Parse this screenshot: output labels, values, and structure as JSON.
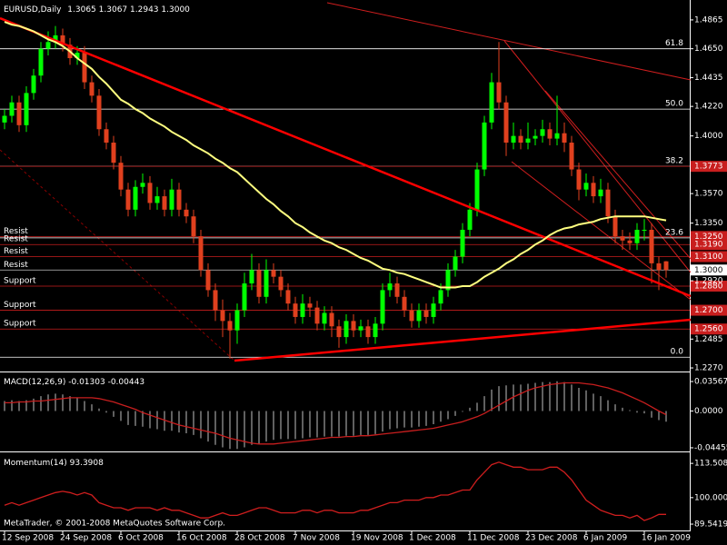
{
  "chart_data": [
    {
      "type": "candlestick",
      "title": "EURUSD,Daily",
      "close_label": "1.3000",
      "categories": [
        "12 Sep 2008",
        null,
        null,
        null,
        null,
        null,
        null,
        null,
        "24 Sep 2008",
        null,
        null,
        null,
        null,
        null,
        null,
        null,
        "6 Oct 2008",
        null,
        null,
        null,
        null,
        null,
        null,
        null,
        "16 Oct 2008",
        null,
        null,
        null,
        null,
        null,
        null,
        null,
        "28 Oct 2008",
        null,
        null,
        null,
        null,
        null,
        null,
        null,
        "7 Nov 2008",
        null,
        null,
        null,
        null,
        null,
        null,
        null,
        "19 Nov 2008",
        null,
        null,
        null,
        null,
        null,
        null,
        null,
        "1 Dec 2008",
        null,
        null,
        null,
        null,
        null,
        null,
        null,
        "11 Dec 2008",
        null,
        null,
        null,
        null,
        null,
        null,
        null,
        "23 Dec 2008",
        null,
        null,
        null,
        null,
        null,
        null,
        null,
        "6 Jan 2009",
        null,
        null,
        null,
        null,
        null,
        null,
        null,
        "16 Jan 2009",
        null,
        null,
        null
      ],
      "open": [
        1.41,
        1.415,
        1.425,
        1.408,
        1.432,
        1.445,
        1.465,
        1.47,
        1.475,
        1.468,
        1.458,
        1.462,
        1.44,
        1.43,
        1.405,
        1.395,
        1.38,
        1.36,
        1.345,
        1.362,
        1.365,
        1.35,
        1.355,
        1.345,
        1.36,
        1.345,
        1.34,
        1.325,
        1.3,
        1.285,
        1.27,
        1.262,
        1.255,
        1.27,
        1.29,
        1.3,
        1.28,
        1.3,
        1.295,
        1.285,
        1.275,
        1.265,
        1.275,
        1.272,
        1.26,
        1.268,
        1.258,
        1.25,
        1.262,
        1.255,
        1.258,
        1.25,
        1.26,
        1.285,
        1.29,
        1.28,
        1.27,
        1.262,
        1.27,
        1.265,
        1.275,
        1.285,
        1.3,
        1.31,
        1.33,
        1.345,
        1.375,
        1.41,
        1.44,
        1.425,
        1.395,
        1.4,
        1.395,
        1.398,
        1.4,
        1.405,
        1.398,
        1.402,
        1.395,
        1.375,
        1.36,
        1.365,
        1.355,
        1.36,
        1.34,
        1.325,
        1.322,
        1.32,
        1.33,
        1.33,
        1.305,
        1.3065
      ],
      "high": [
        1.42,
        1.43,
        1.43,
        1.437,
        1.45,
        1.47,
        1.478,
        1.482,
        1.48,
        1.473,
        1.467,
        1.467,
        1.445,
        1.435,
        1.41,
        1.4,
        1.385,
        1.365,
        1.367,
        1.372,
        1.37,
        1.362,
        1.36,
        1.368,
        1.365,
        1.35,
        1.345,
        1.33,
        1.305,
        1.29,
        1.278,
        1.268,
        1.275,
        1.298,
        1.312,
        1.305,
        1.308,
        1.305,
        1.3,
        1.29,
        1.28,
        1.282,
        1.28,
        1.277,
        1.273,
        1.273,
        1.263,
        1.267,
        1.267,
        1.263,
        1.263,
        1.265,
        1.29,
        1.298,
        1.295,
        1.285,
        1.275,
        1.275,
        1.275,
        1.28,
        1.29,
        1.305,
        1.315,
        1.335,
        1.35,
        1.38,
        1.415,
        1.447,
        1.47,
        1.43,
        1.41,
        1.405,
        1.41,
        1.405,
        1.412,
        1.41,
        1.43,
        1.41,
        1.4,
        1.38,
        1.372,
        1.37,
        1.368,
        1.365,
        1.345,
        1.33,
        1.328,
        1.335,
        1.338,
        1.335,
        1.31,
        1.3067
      ],
      "low": [
        1.405,
        1.41,
        1.403,
        1.403,
        1.427,
        1.44,
        1.46,
        1.465,
        1.463,
        1.453,
        1.453,
        1.435,
        1.425,
        1.4,
        1.39,
        1.375,
        1.355,
        1.34,
        1.34,
        1.357,
        1.345,
        1.345,
        1.34,
        1.34,
        1.34,
        1.335,
        1.32,
        1.295,
        1.28,
        1.262,
        1.25,
        1.234,
        1.245,
        1.265,
        1.285,
        1.275,
        1.275,
        1.29,
        1.28,
        1.27,
        1.26,
        1.26,
        1.265,
        1.255,
        1.255,
        1.25,
        1.242,
        1.245,
        1.25,
        1.25,
        1.245,
        1.245,
        1.255,
        1.28,
        1.275,
        1.265,
        1.257,
        1.257,
        1.26,
        1.26,
        1.27,
        1.28,
        1.295,
        1.305,
        1.325,
        1.34,
        1.37,
        1.405,
        1.42,
        1.385,
        1.39,
        1.39,
        1.39,
        1.393,
        1.395,
        1.393,
        1.393,
        1.388,
        1.37,
        1.352,
        1.355,
        1.35,
        1.35,
        1.335,
        1.32,
        1.315,
        1.315,
        1.315,
        1.322,
        1.29,
        1.285,
        1.2943
      ],
      "close": [
        1.415,
        1.425,
        1.408,
        1.432,
        1.445,
        1.465,
        1.47,
        1.475,
        1.468,
        1.458,
        1.462,
        1.44,
        1.43,
        1.405,
        1.395,
        1.38,
        1.36,
        1.345,
        1.362,
        1.365,
        1.35,
        1.355,
        1.345,
        1.36,
        1.345,
        1.34,
        1.325,
        1.3,
        1.285,
        1.27,
        1.262,
        1.255,
        1.27,
        1.29,
        1.3,
        1.28,
        1.3,
        1.295,
        1.285,
        1.275,
        1.265,
        1.275,
        1.272,
        1.26,
        1.268,
        1.258,
        1.25,
        1.262,
        1.255,
        1.258,
        1.25,
        1.26,
        1.285,
        1.29,
        1.28,
        1.27,
        1.262,
        1.27,
        1.265,
        1.275,
        1.285,
        1.3,
        1.31,
        1.33,
        1.345,
        1.375,
        1.41,
        1.44,
        1.425,
        1.395,
        1.4,
        1.395,
        1.398,
        1.4,
        1.405,
        1.398,
        1.402,
        1.395,
        1.375,
        1.36,
        1.365,
        1.355,
        1.36,
        1.34,
        1.325,
        1.322,
        1.32,
        1.33,
        1.33,
        1.305,
        1.3,
        1.3
      ],
      "up_color": "#00ff00",
      "down_color": "#e0401e",
      "ma": {
        "color": "#ffff80",
        "values": [
          1.485,
          1.483,
          1.482,
          1.48,
          1.478,
          1.475,
          1.472,
          1.47,
          1.467,
          1.463,
          1.458,
          1.454,
          1.45,
          1.444,
          1.439,
          1.433,
          1.427,
          1.424,
          1.42,
          1.417,
          1.413,
          1.41,
          1.407,
          1.403,
          1.4,
          1.397,
          1.393,
          1.39,
          1.387,
          1.383,
          1.38,
          1.376,
          1.373,
          1.368,
          1.363,
          1.358,
          1.353,
          1.349,
          1.344,
          1.34,
          1.335,
          1.332,
          1.328,
          1.325,
          1.322,
          1.32,
          1.317,
          1.315,
          1.312,
          1.309,
          1.307,
          1.304,
          1.301,
          1.3,
          1.298,
          1.297,
          1.295,
          1.293,
          1.291,
          1.289,
          1.287,
          1.287,
          1.287,
          1.288,
          1.288,
          1.291,
          1.295,
          1.298,
          1.301,
          1.305,
          1.308,
          1.312,
          1.315,
          1.319,
          1.322,
          1.326,
          1.329,
          1.331,
          1.332,
          1.334,
          1.335,
          1.336,
          1.338,
          1.339,
          1.34,
          1.34,
          1.34,
          1.34,
          1.34,
          1.339,
          1.338,
          1.337
        ]
      },
      "ylim": [
        1.225,
        1.5
      ],
      "yticks": [
        1.4865,
        {
          "value": 1.465,
          "label": "1.4650"
        },
        1.4435,
        {
          "value": 1.422,
          "label": "1.4220"
        },
        {
          "value": 1.4,
          "label": "1.4000"
        },
        {
          "value": 1.357,
          "label": "1.3570"
        },
        {
          "value": 1.335,
          "label": "1.3350"
        },
        {
          "value": 1.292,
          "label": "1.2920"
        },
        1.2485,
        {
          "value": 1.227,
          "label": "1.2270"
        }
      ],
      "levels": [
        {
          "value": 1.3773,
          "label": "1.3773"
        },
        {
          "value": 1.325,
          "label": "1.3250",
          "tag": "Resist"
        },
        {
          "value": 1.319,
          "label": "1.3190",
          "tag": "Resist"
        },
        {
          "value": 1.31,
          "label": "1.3100",
          "tag": "Resist"
        },
        {
          "value": 1.3,
          "label": "1.3000",
          "tag": "Resist",
          "current": true
        },
        {
          "value": 1.288,
          "label": "1.2880",
          "tag": "Support"
        },
        {
          "value": 1.27,
          "label": "1.2700",
          "tag": "Support"
        },
        {
          "value": 1.256,
          "label": "1.2560",
          "tag": "Support"
        }
      ],
      "level_color": "#c81e1e",
      "fibo": {
        "levels": [
          61.8,
          {
            "value": 50,
            "label": "50.0"
          },
          38.2,
          23.6,
          {
            "value": 0,
            "label": "0.0"
          }
        ],
        "prices": [
          1.465,
          1.42,
          1.3773,
          1.324,
          1.235
        ]
      },
      "footer": "MetaTrader, © 2001-2008 MetaQuotes Software Corp."
    },
    {
      "type": "macd",
      "title": "MACD(12,26,9)",
      "values": [
        0.012,
        0.013,
        0.012,
        0.013,
        0.015,
        0.018,
        0.02,
        0.021,
        0.02,
        0.018,
        0.016,
        0.012,
        0.008,
        0.003,
        -0.002,
        -0.007,
        -0.012,
        -0.017,
        -0.018,
        -0.019,
        -0.021,
        -0.022,
        -0.024,
        -0.024,
        -0.026,
        -0.027,
        -0.029,
        -0.033,
        -0.037,
        -0.041,
        -0.044,
        -0.046,
        -0.046,
        -0.044,
        -0.041,
        -0.04,
        -0.037,
        -0.035,
        -0.034,
        -0.034,
        -0.034,
        -0.033,
        -0.032,
        -0.032,
        -0.031,
        -0.031,
        -0.031,
        -0.03,
        -0.03,
        -0.029,
        -0.029,
        -0.028,
        -0.025,
        -0.022,
        -0.021,
        -0.02,
        -0.02,
        -0.019,
        -0.018,
        -0.016,
        -0.013,
        -0.01,
        -0.006,
        -0.001,
        0.004,
        0.01,
        0.018,
        0.026,
        0.03,
        0.031,
        0.032,
        0.032,
        0.033,
        0.034,
        0.035,
        0.035,
        0.036,
        0.035,
        0.032,
        0.028,
        0.025,
        0.021,
        0.018,
        0.013,
        0.008,
        0.004,
        0.001,
        -0.002,
        -0.003,
        -0.008,
        -0.011,
        -0.01303
      ],
      "signal": [
        0.01,
        0.01,
        0.011,
        0.011,
        0.012,
        0.012,
        0.013,
        0.014,
        0.015,
        0.016,
        0.016,
        0.016,
        0.016,
        0.015,
        0.013,
        0.011,
        0.008,
        0.005,
        0.002,
        -0.002,
        -0.005,
        -0.008,
        -0.011,
        -0.014,
        -0.017,
        -0.019,
        -0.021,
        -0.023,
        -0.025,
        -0.027,
        -0.03,
        -0.033,
        -0.035,
        -0.037,
        -0.039,
        -0.04,
        -0.04,
        -0.04,
        -0.039,
        -0.038,
        -0.037,
        -0.036,
        -0.035,
        -0.034,
        -0.033,
        -0.032,
        -0.032,
        -0.031,
        -0.031,
        -0.03,
        -0.03,
        -0.029,
        -0.028,
        -0.027,
        -0.026,
        -0.025,
        -0.024,
        -0.023,
        -0.022,
        -0.021,
        -0.019,
        -0.017,
        -0.015,
        -0.013,
        -0.01,
        -0.007,
        -0.003,
        0.002,
        0.007,
        0.012,
        0.017,
        0.021,
        0.025,
        0.028,
        0.03,
        0.032,
        0.033,
        0.034,
        0.034,
        0.034,
        0.033,
        0.032,
        0.03,
        0.028,
        0.025,
        0.022,
        0.018,
        0.014,
        0.01,
        0.005,
        0,
        -0.00443
      ],
      "color": "#c0c0c0",
      "signal_color": "#c81e1e",
      "ylim": [
        -0.049,
        0.0456
      ],
      "yticks": [
        0.03567,
        {
          "value": 0,
          "label": "0.0000"
        },
        -0.04455
      ]
    },
    {
      "type": "momentum",
      "title": "Momentum(14)",
      "values": [
        97,
        98,
        97,
        98,
        99,
        100,
        101,
        102,
        102.5,
        102,
        101,
        102,
        101,
        98,
        97,
        96,
        96,
        95,
        96,
        96,
        96,
        95,
        96,
        95,
        95,
        94,
        93,
        92,
        92,
        93,
        94,
        93,
        93,
        94,
        95,
        96,
        96,
        95,
        94,
        94,
        94,
        95,
        95,
        94,
        95,
        95,
        94,
        94,
        94,
        95,
        95,
        96,
        97,
        98,
        98,
        99,
        99,
        99,
        100,
        100,
        101,
        101,
        102,
        103,
        103,
        107,
        110,
        113,
        114,
        113,
        112,
        112,
        111,
        111,
        111,
        112,
        112,
        110,
        107,
        103,
        99,
        97,
        95,
        94,
        93,
        93,
        92,
        93,
        91,
        92,
        93.4,
        93.3908
      ],
      "color": "#d01e1e",
      "ylim": [
        87.4,
        117.5
      ],
      "yticks": [
        113.5086,
        {
          "value": 100,
          "label": "100.0000"
        },
        89.5419
      ]
    }
  ]
}
